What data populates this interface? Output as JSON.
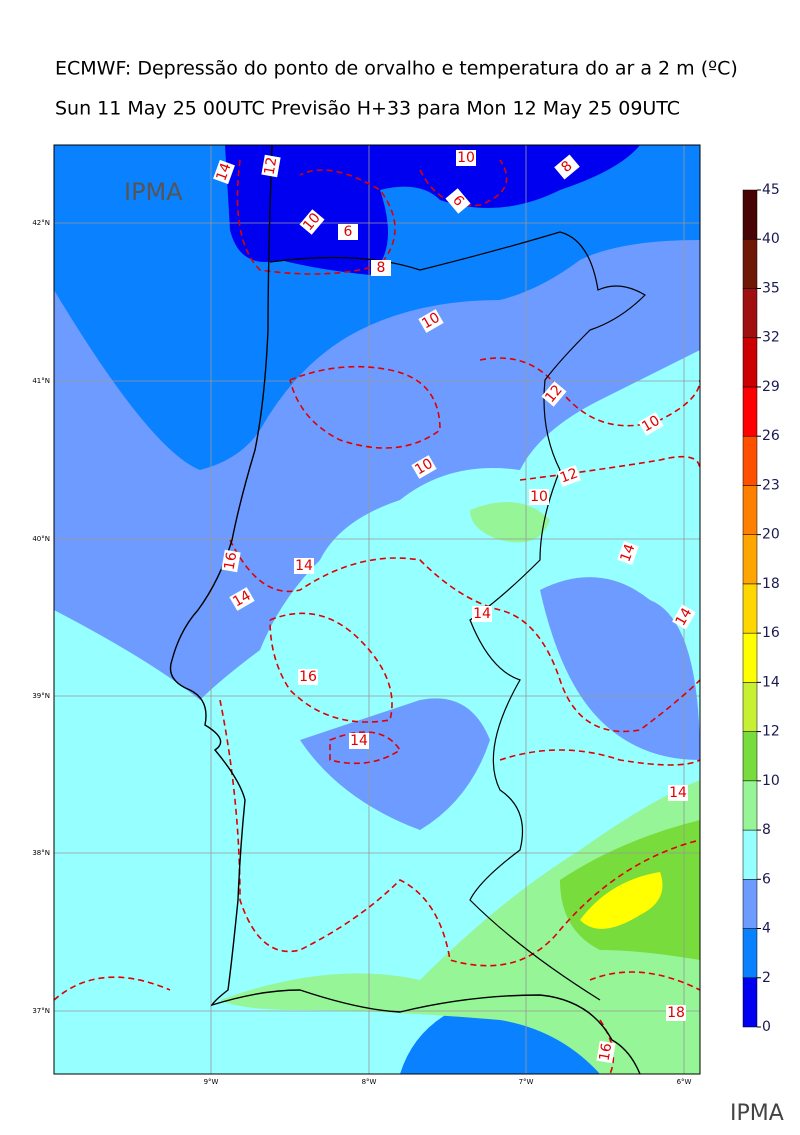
{
  "header": {
    "title": "ECMWF: Depressão do ponto de orvalho e temperatura do ar a 2 m (ºC)",
    "subtitle": "Sun 11 May 25 00UTC Previsão H+33 para Mon 12 May 25 09UTC"
  },
  "map": {
    "logo": "IPMA",
    "lat_labels": [
      "42°N",
      "41°N",
      "40°N",
      "39°N",
      "38°N",
      "37°N"
    ],
    "lon_labels": [
      "9°W",
      "8°W",
      "7°W",
      "6°W"
    ],
    "contour_labels": [
      "14",
      "12",
      "10",
      "6",
      "10",
      "6",
      "8",
      "8",
      "10",
      "12",
      "10",
      "10",
      "12",
      "10",
      "16",
      "14",
      "14",
      "14",
      "14",
      "16",
      "14",
      "14",
      "14",
      "18",
      "16"
    ]
  },
  "colorbar": {
    "ticks": [
      0,
      2,
      4,
      6,
      8,
      10,
      12,
      14,
      16,
      18,
      20,
      23,
      26,
      29,
      32,
      35,
      40,
      45
    ],
    "colors": [
      "#0000f0",
      "#0a82ff",
      "#6e9bff",
      "#96ffff",
      "#96f596",
      "#78dc3c",
      "#c8f032",
      "#ffff00",
      "#ffd700",
      "#ffa500",
      "#ff8000",
      "#ff5000",
      "#ff0000",
      "#cc0000",
      "#a01010",
      "#701808",
      "#480404"
    ]
  },
  "footer": {
    "logo": "IPMA"
  }
}
